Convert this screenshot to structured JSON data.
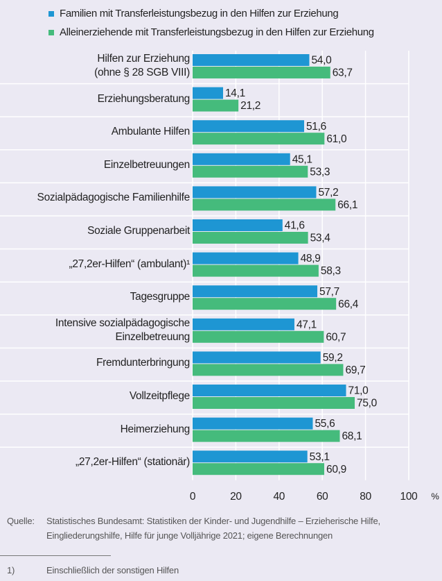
{
  "chart_data": {
    "type": "bar",
    "orientation": "horizontal",
    "categories": [
      "Hilfen zur Erziehung\n(ohne § 28 SGB VIII)",
      "Erziehungsberatung",
      "Ambulante Hilfen",
      "Einzelbetreuungen",
      "Sozialpädagogische Familienhilfe",
      "Soziale Gruppenarbeit",
      "„27,2er-Hilfen“ (ambulant)¹",
      "Tagesgruppe",
      "Intensive sozialpädagogische\nEinzelbetreuung",
      "Fremdunterbringung",
      "Vollzeitpflege",
      "Heimerziehung",
      "„27,2er-Hilfen“ (stationär)"
    ],
    "series": [
      {
        "name": "Familien mit Transferleistungsbezug in den Hilfen zur Erziehung",
        "color": "#1e96d3",
        "values": [
          54.0,
          14.1,
          51.6,
          45.1,
          57.2,
          41.6,
          48.9,
          57.7,
          47.1,
          59.2,
          71.0,
          55.6,
          53.1
        ],
        "value_labels": [
          "54,0",
          "14,1",
          "51,6",
          "45,1",
          "57,2",
          "41,6",
          "48,9",
          "57,7",
          "47,1",
          "59,2",
          "71,0",
          "55,6",
          "53,1"
        ]
      },
      {
        "name": "Alleinerziehende mit Transferleistungsbezug in den Hilfen zur Erziehung",
        "color": "#45bb7c",
        "values": [
          63.7,
          21.2,
          61.0,
          53.3,
          66.1,
          53.4,
          58.3,
          66.4,
          60.7,
          69.7,
          75.0,
          68.1,
          60.9
        ],
        "value_labels": [
          "63,7",
          "21,2",
          "61,0",
          "53,3",
          "66,1",
          "53,4",
          "58,3",
          "66,4",
          "60,7",
          "69,7",
          "75,0",
          "68,1",
          "60,9"
        ]
      }
    ],
    "xlim": [
      0,
      100
    ],
    "xticks": [
      0,
      20,
      40,
      60,
      80,
      100
    ],
    "x_unit": "%",
    "grid": true,
    "source_label": "Quelle:",
    "source": "Statistisches Bundesamt: Statistiken der Kinder- und Jugendhilfe – Erzieherische Hilfe,\nEingliederungshilfe, Hilfe für junge Volljährige 2021; eigene Berechnungen",
    "footnote_label": "1)",
    "footnote": "Einschließlich der sonstigen Hilfen"
  }
}
